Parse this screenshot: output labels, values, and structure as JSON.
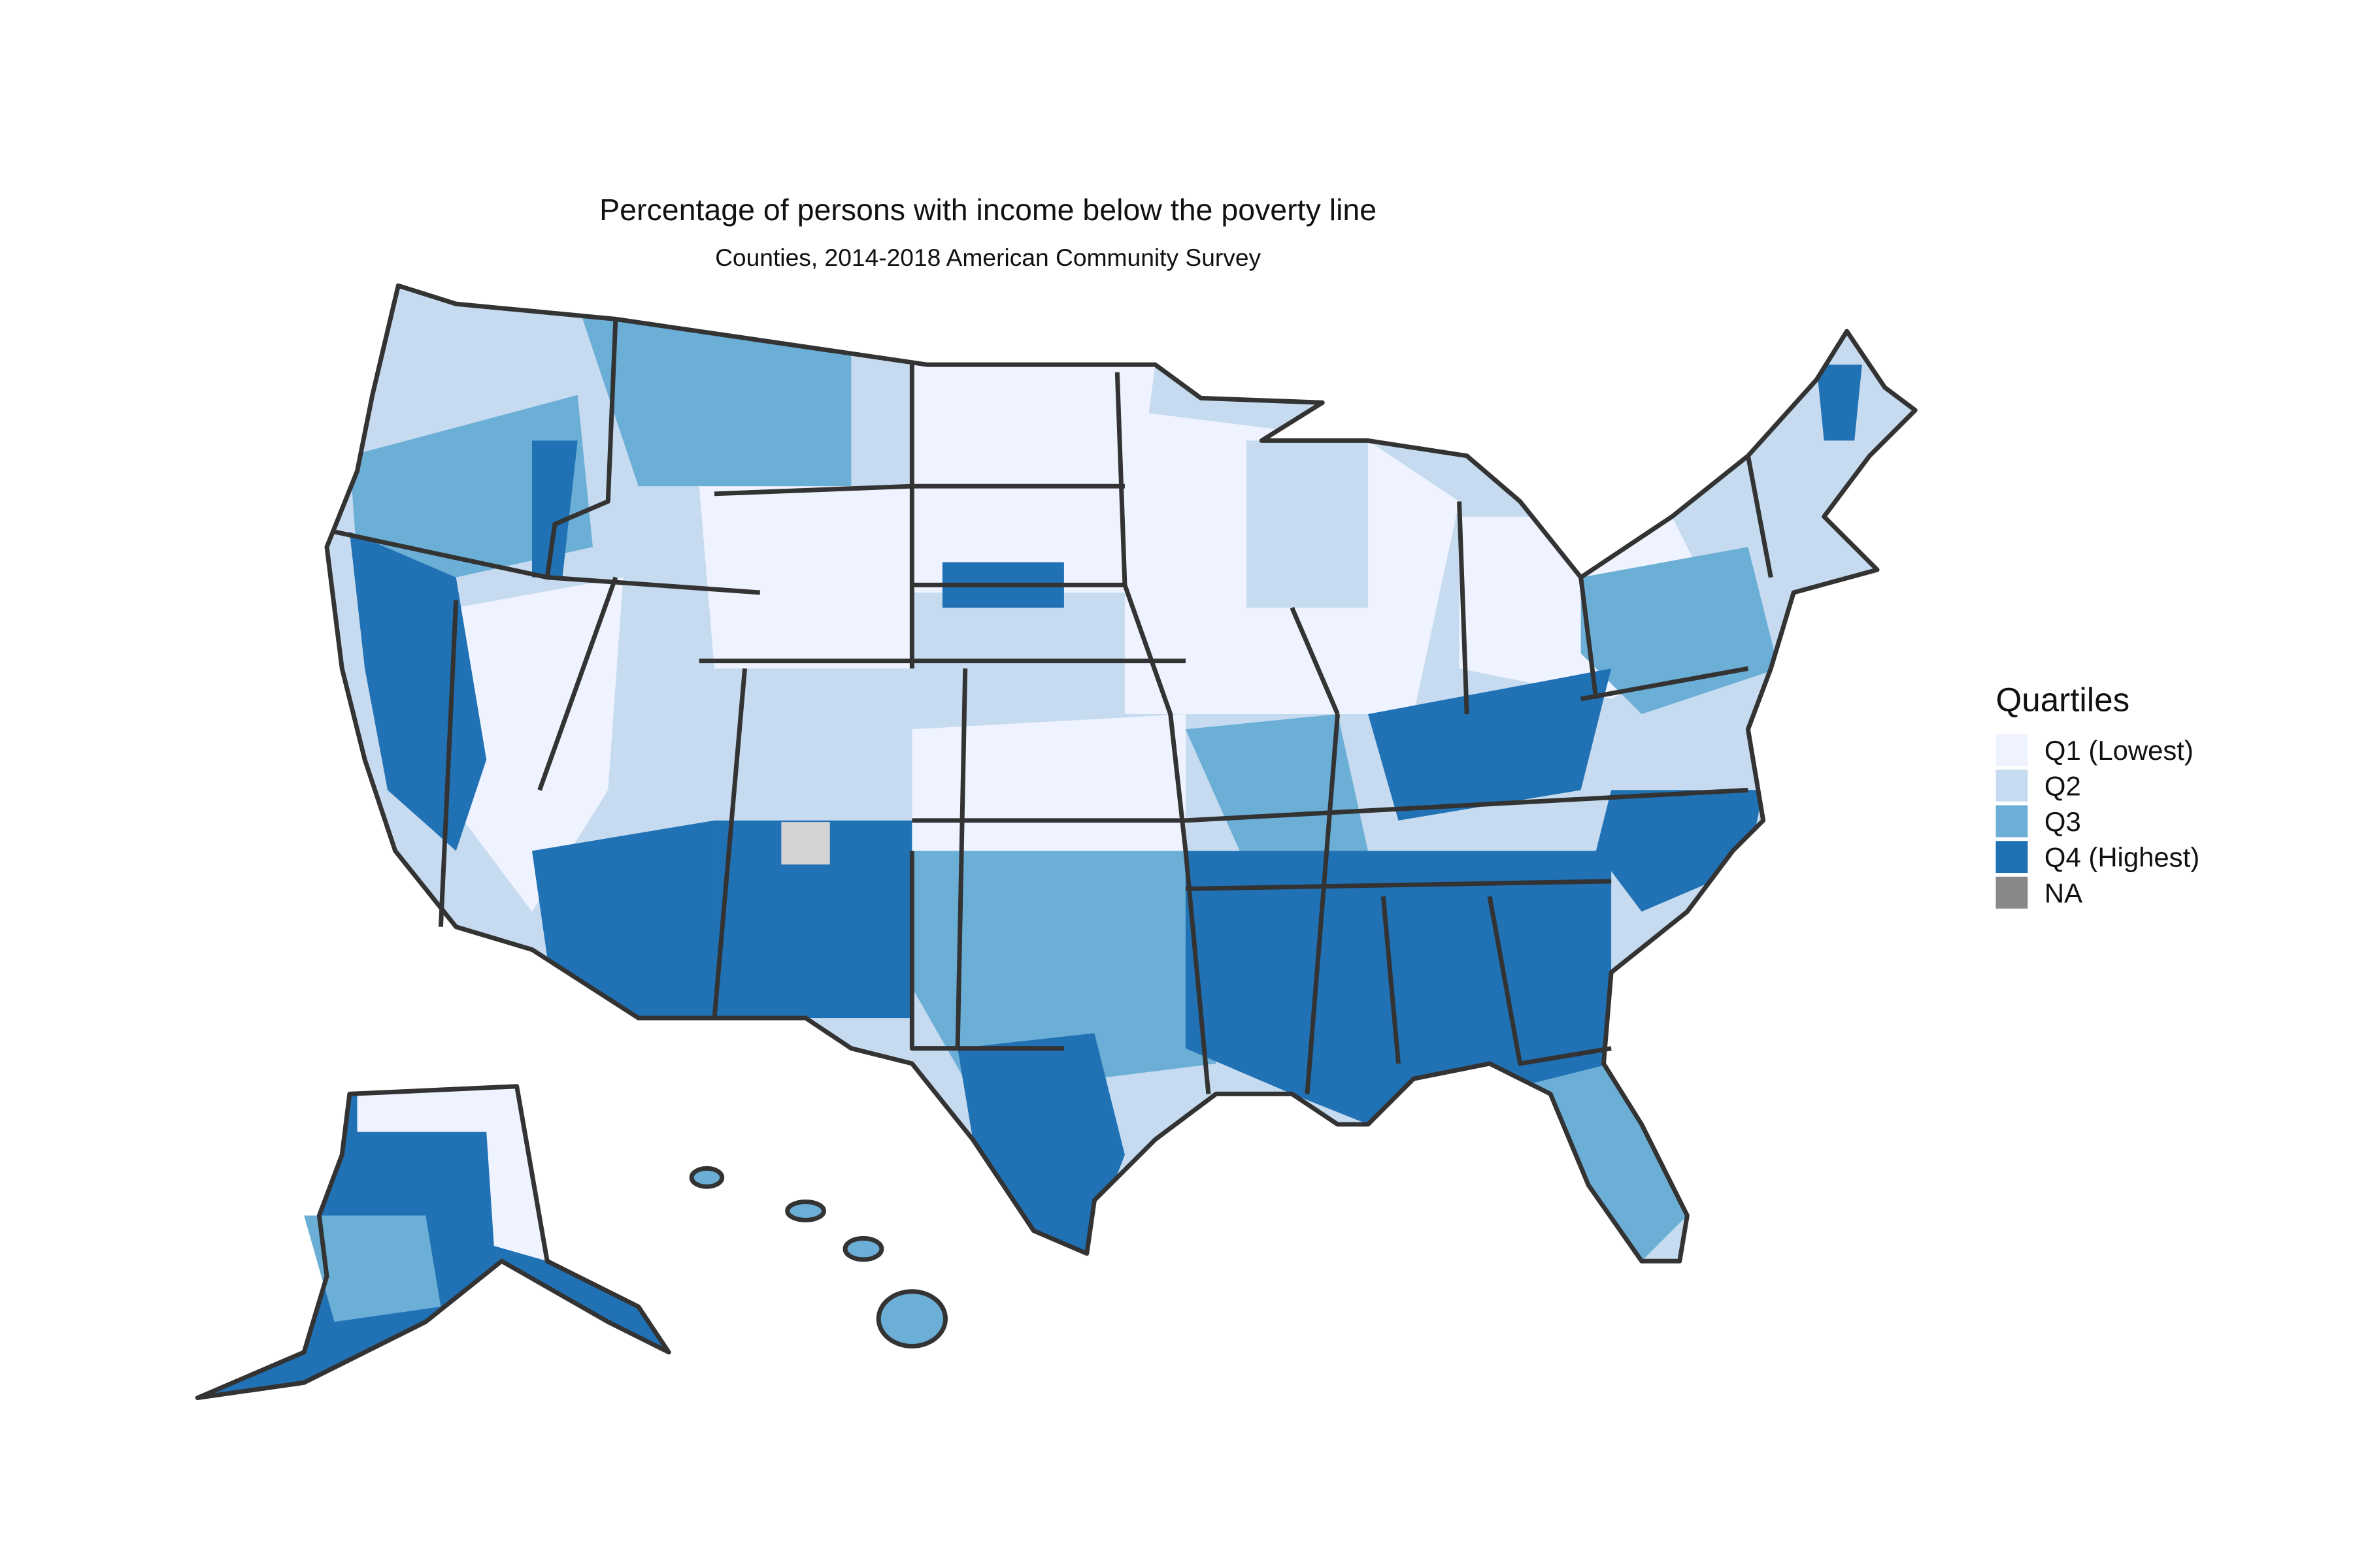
{
  "title": "Percentage of persons with income below the poverty line",
  "subtitle": "Counties, 2014-2018 American Community Survey",
  "legend": {
    "title": "Quartiles",
    "items": [
      {
        "label": "Q1 (Lowest)",
        "color": "#eff3ff"
      },
      {
        "label": "Q2",
        "color": "#c6dbef"
      },
      {
        "label": "Q3",
        "color": "#6baed6"
      },
      {
        "label": "Q4 (Highest)",
        "color": "#2171b5"
      },
      {
        "label": "NA",
        "color": "#888888"
      }
    ]
  }
}
